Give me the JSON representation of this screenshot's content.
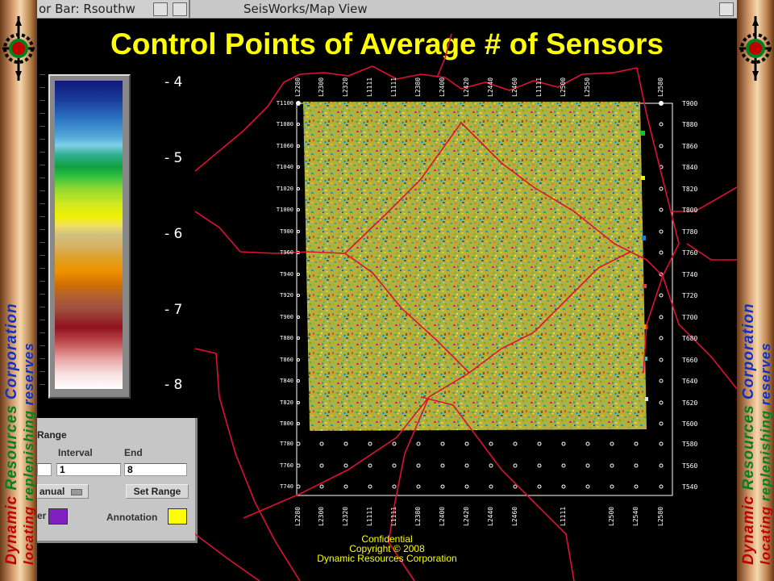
{
  "branding": {
    "word_dynamic": "Dynamic",
    "word_resources": "Resources",
    "word_corporation": "Corporation",
    "tagline_locating": "locating",
    "tagline_replenishing": "replenishing",
    "tagline_reserves": "reserves",
    "icon": "target-logo-icon",
    "colors": {
      "red": "#c00000",
      "green": "#008020",
      "blue": "#1030c0"
    }
  },
  "title": "Control Points of Average # of Sensors",
  "window": {
    "left_title": "or Bar: Rsouthw",
    "main_title": "SeisWorks/Map View"
  },
  "colorbar": {
    "ticks": [
      "- 4",
      "- 5",
      "- 6",
      "- 7",
      "- 8"
    ]
  },
  "range_panel": {
    "heading": "Range",
    "interval_label": "Interval",
    "end_label": "End",
    "interval_value": "1",
    "end_value": "8",
    "mode_label": "anual",
    "set_range_label": "Set Range",
    "color_label": "er",
    "annotation_label": "Annotation",
    "colors": {
      "color_swatch": "#8020c0",
      "annotation_swatch": "#ffff00"
    }
  },
  "map": {
    "top_labels": [
      "L2280",
      "L2300",
      "L2320",
      "L1111",
      "L1111",
      "L2380",
      "L2400",
      "L2420",
      "L2440",
      "L2460",
      "L1111",
      "L2500",
      "L2550",
      "L2580"
    ],
    "bottom_labels": [
      "L2280",
      "L2300",
      "L2320",
      "L1111",
      "L1111",
      "L2380",
      "L2400",
      "L2420",
      "L2440",
      "L2460",
      "L1111",
      "L2500",
      "L2540",
      "L2580"
    ],
    "left_labels": [
      "T1100",
      "T1080",
      "T1060",
      "T1040",
      "T1020",
      "T1000",
      "T980",
      "T960",
      "T940",
      "T920",
      "T900",
      "T880",
      "T860",
      "T840",
      "T820",
      "T800",
      "T780",
      "T760",
      "T740"
    ],
    "right_labels": [
      "T900",
      "T880",
      "T860",
      "T840",
      "T820",
      "T800",
      "T780",
      "T760",
      "T740",
      "T720",
      "T700",
      "T680",
      "T660",
      "T640",
      "T620",
      "T600",
      "T580",
      "T560",
      "T540"
    ]
  },
  "footer": {
    "line1": "Confidential",
    "line2": "Copyright © 2008",
    "line3": "Dynamic Resources Corporation"
  }
}
